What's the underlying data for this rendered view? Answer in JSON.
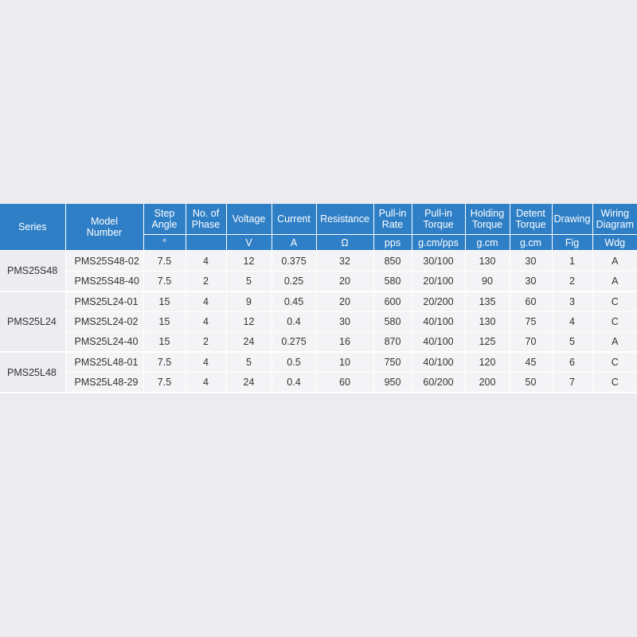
{
  "headers": {
    "series": "Series",
    "model_line1": "Model",
    "model_line2": "Number",
    "step_line1": "Step",
    "step_line2": "Angle",
    "phase_line1": "No. of",
    "phase_line2": "Phase",
    "voltage": "Voltage",
    "current": "Current",
    "resistance": "Resistance",
    "pullin_rate_line1": "Pull-in",
    "pullin_rate_line2": "Rate",
    "pullin_torque_line1": "Pull-in",
    "pullin_torque_line2": "Torque",
    "holding_line1": "Holding",
    "holding_line2": "Torque",
    "detent_line1": "Detent",
    "detent_line2": "Torque",
    "drawing": "Drawing",
    "wiring_line1": "Wiring",
    "wiring_line2": "Diagram"
  },
  "units": {
    "step": "°",
    "voltage": "V",
    "current": "A",
    "resistance": "Ω",
    "pullin_rate": "pps",
    "pullin_torque": "g.cm/pps",
    "holding": "g.cm",
    "detent": "g.cm",
    "drawing": "Fig",
    "wiring": "Wdg"
  },
  "series": [
    "PMS25S48",
    "PMS25L24",
    "PMS25L48"
  ],
  "rows": [
    {
      "model": "PMS25S48-02",
      "step": "7.5",
      "phase": "4",
      "voltage": "12",
      "current": "0.375",
      "resistance": "32",
      "pullin_rate": "850",
      "pullin_torque": "30/100",
      "holding": "130",
      "detent": "30",
      "drawing": "1",
      "wiring": "A"
    },
    {
      "model": "PMS25S48-40",
      "step": "7.5",
      "phase": "2",
      "voltage": "5",
      "current": "0.25",
      "resistance": "20",
      "pullin_rate": "580",
      "pullin_torque": "20/100",
      "holding": "90",
      "detent": "30",
      "drawing": "2",
      "wiring": "A"
    },
    {
      "model": "PMS25L24-01",
      "step": "15",
      "phase": "4",
      "voltage": "9",
      "current": "0.45",
      "resistance": "20",
      "pullin_rate": "600",
      "pullin_torque": "20/200",
      "holding": "135",
      "detent": "60",
      "drawing": "3",
      "wiring": "C"
    },
    {
      "model": "PMS25L24-02",
      "step": "15",
      "phase": "4",
      "voltage": "12",
      "current": "0.4",
      "resistance": "30",
      "pullin_rate": "580",
      "pullin_torque": "40/100",
      "holding": "130",
      "detent": "75",
      "drawing": "4",
      "wiring": "C"
    },
    {
      "model": "PMS25L24-40",
      "step": "15",
      "phase": "2",
      "voltage": "24",
      "current": "0.275",
      "resistance": "16",
      "pullin_rate": "870",
      "pullin_torque": "40/100",
      "holding": "125",
      "detent": "70",
      "drawing": "5",
      "wiring": "A"
    },
    {
      "model": "PMS25L48-01",
      "step": "7.5",
      "phase": "4",
      "voltage": "5",
      "current": "0.5",
      "resistance": "10",
      "pullin_rate": "750",
      "pullin_torque": "40/100",
      "holding": "120",
      "detent": "45",
      "drawing": "6",
      "wiring": "C"
    },
    {
      "model": "PMS25L48-29",
      "step": "7.5",
      "phase": "4",
      "voltage": "24",
      "current": "0.4",
      "resistance": "60",
      "pullin_rate": "950",
      "pullin_torque": "60/200",
      "holding": "200",
      "detent": "50",
      "drawing": "7",
      "wiring": "C"
    }
  ],
  "colors": {
    "header_bg": "#2f7fc6",
    "page_bg": "#ececf0",
    "cell_bg": "#f4f4f7"
  }
}
